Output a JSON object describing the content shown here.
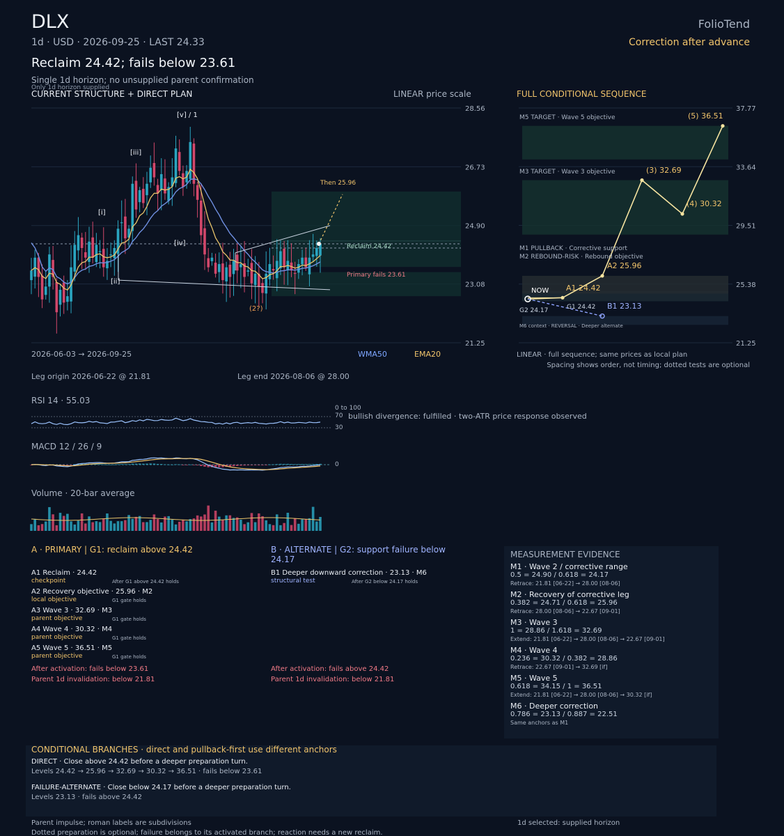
{
  "header": {
    "ticker": "DLX",
    "meta": "1d · USD · 2026-09-25 · LAST 24.33",
    "headline": "Reclaim 24.42; fails below 23.61",
    "subtitle": "Single 1d horizon; no unsupplied parent confirmation",
    "subnote": "Only 1d horizon supplied",
    "brand": "FolioTend",
    "state": "Correction after advance"
  },
  "main_chart": {
    "title": "CURRENT STRUCTURE + DIRECT PLAN",
    "scale_label": "LINEAR price scale",
    "date_range": "2026-06-03 → 2026-09-25",
    "legend_wma": "WMA50",
    "legend_ema": "EMA20",
    "leg_origin": "Leg origin 2026-06-22 @ 21.81",
    "leg_end": "Leg end 2026-08-06 @ 28.00",
    "label_then": "Then 25.96",
    "label_reclaim": "Reclaim 24.42",
    "label_fails": "Primary fails 23.61",
    "wave_labels": [
      "[i]",
      "[ii]",
      "[iii]",
      "[iv]",
      "[v] / 1",
      "(2?)"
    ]
  },
  "seq_chart": {
    "title": "FULL CONDITIONAL SEQUENCE",
    "footer1": "LINEAR · full sequence; same prices as local plan",
    "footer2": "Spacing shows order, not timing; dotted tests are optional",
    "zone_m5": "M5 TARGET · Wave 5 objective",
    "zone_m3": "M3 TARGET · Wave 3 objective",
    "zone_m1": "M1 PULLBACK · Corrective support",
    "zone_m2": "M2 REBOUND-RISK · Rebound objective",
    "zone_m6": "M6 context · REVERSAL · Deeper alternate",
    "now_label": "NOW",
    "g2_label": "G2 24.17",
    "g1_label": "G1 24.42"
  },
  "indicators": {
    "rsi_label": "RSI 14 · 55.03",
    "rsi_range": "0 to 100",
    "rsi_70": "70",
    "rsi_30": "30",
    "rsi_note": "bullish divergence: fulfilled · two-ATR price response observed",
    "macd_label": "MACD 12 / 26 / 9",
    "macd_zero": "0",
    "volume_label": "Volume · 20-bar average"
  },
  "primary": {
    "title": "A · PRIMARY | G1: reclaim above 24.42",
    "items": [
      {
        "name": "A1 Reclaim · 24.42",
        "tag": "checkpoint",
        "note": "After G1 above 24.42 holds"
      },
      {
        "name": "A2 Recovery objective · 25.96 · M2",
        "tag": "local objective",
        "note": "G1 gate holds"
      },
      {
        "name": "A3 Wave 3 · 32.69 · M3",
        "tag": "parent objective",
        "note": "G1 gate holds"
      },
      {
        "name": "A4 Wave 4 · 30.32 · M4",
        "tag": "parent objective",
        "note": "G1 gate holds"
      },
      {
        "name": "A5 Wave 5 · 36.51 · M5",
        "tag": "parent objective",
        "note": "G1 gate holds"
      }
    ],
    "fail1": "After activation: fails below 23.61",
    "fail2": "Parent 1d invalidation: below 21.81"
  },
  "alternate": {
    "title_line1": "B · ALTERNATE | G2: support failure below",
    "title_line2": "24.17",
    "items": [
      {
        "name": "B1 Deeper downward correction · 23.13 · M6",
        "tag": "structural test",
        "note": "After G2 below 24.17 holds"
      }
    ],
    "fail1": "After activation: fails above 24.42",
    "fail2": "Parent 1d invalidation: below 21.81"
  },
  "evidence": {
    "title": "MEASUREMENT EVIDENCE",
    "items": [
      {
        "h": "M1 · Wave 2 / corrective range",
        "l": "0.5 = 24.90 / 0.618 = 24.17",
        "s": "Retrace: 21.81 [06-22] → 28.00 [08-06]"
      },
      {
        "h": "M2 · Recovery of corrective leg",
        "l": "0.382 = 24.71 / 0.618 = 25.96",
        "s": "Retrace: 28.00 [08-06] → 22.67 [09-01]"
      },
      {
        "h": "M3 · Wave 3",
        "l": "1 = 28.86 / 1.618 = 32.69",
        "s": "Extend: 21.81 [06-22] → 28.00 [08-06] → 22.67 [09-01]"
      },
      {
        "h": "M4 · Wave 4",
        "l": "0.236 = 30.32 / 0.382 = 28.86",
        "s": "Retrace: 22.67 [09-01] → 32.69 [if]"
      },
      {
        "h": "M5 · Wave 5",
        "l": "0.618 = 34.15 / 1 = 36.51",
        "s": "Extend: 21.81 [06-22] → 28.00 [08-06] → 30.32 [if]"
      },
      {
        "h": "M6 · Deeper correction",
        "l": "0.786 = 23.13 / 0.887 = 22.51",
        "s": "Same anchors as M1"
      }
    ]
  },
  "branches": {
    "title": "CONDITIONAL BRANCHES · direct and pullback-first use different anchors",
    "direct_title": "DIRECT · Close above 24.42 before a deeper preparation turn.",
    "direct_levels": "Levels 24.42 → 25.96 → 32.69 → 30.32 → 36.51 · fails below 23.61",
    "alt_title": "FAILURE-ALTERNATE · Close below 24.17 before a deeper preparation turn.",
    "alt_levels": "Levels 23.13 · fails above 24.42"
  },
  "footer": {
    "left1": "Parent impulse; roman labels are subdivisions",
    "left2": "Dotted preparation is optional; failure belongs to its activated branch; reaction needs a new reclaim.",
    "right": "1d selected: supplied horizon"
  },
  "chart_data": [
    {
      "type": "candlestick",
      "title": "CURRENT STRUCTURE + DIRECT PLAN",
      "x_range": [
        "2026-06-03",
        "2026-09-25"
      ],
      "ylim": [
        21.25,
        28.56
      ],
      "y_ticks": [
        28.56,
        26.73,
        24.9,
        23.08,
        21.25
      ],
      "anchors": [
        {
          "date": "2026-06-22",
          "price": 21.81,
          "label": "Leg origin"
        },
        {
          "date": "2026-08-06",
          "price": 28.0,
          "label": "Leg end"
        },
        {
          "date": "2026-09-01",
          "price": 22.67
        },
        {
          "date": "2026-09-25",
          "price": 24.33,
          "label": "LAST"
        }
      ],
      "levels": {
        "reclaim": 24.42,
        "primary_fails": 23.61,
        "then": 25.96
      },
      "zones": [
        {
          "from": 23.61,
          "to": 25.96
        },
        {
          "from": 22.7,
          "to": 23.45
        }
      ],
      "close_path": [
        23.5,
        23.9,
        23.3,
        22.6,
        23.0,
        24.0,
        23.3,
        22.2,
        22.9,
        22.5,
        22.7,
        23.6,
        24.3,
        24.6,
        24.2,
        23.9,
        24.4,
        23.9,
        24.3,
        24.1,
        23.6,
        23.8,
        24.0,
        24.2,
        24.8,
        25.0,
        24.5,
        24.8,
        26.2,
        25.4,
        26.0,
        25.6,
        26.2,
        26.7,
        26.4,
        25.9,
        26.5,
        25.9,
        26.1,
        26.4,
        27.3,
        26.6,
        26.1,
        26.6,
        27.5,
        26.2,
        25.7,
        24.6,
        24.0,
        23.6,
        23.9,
        23.4,
        23.7,
        23.2,
        23.6,
        23.3,
        23.8,
        23.5,
        23.7,
        23.3,
        23.5,
        23.1,
        23.4,
        23.0,
        22.8,
        23.4,
        23.7,
        23.5,
        23.8,
        24.1,
        23.6,
        23.8,
        23.5,
        23.4,
        23.7,
        23.9,
        23.6,
        23.9,
        24.0,
        24.2,
        24.33
      ],
      "wave_labels": [
        {
          "label": "[i]",
          "price": 24.95
        },
        {
          "label": "[ii]",
          "price": 22.91
        },
        {
          "label": "[iii]",
          "price": 26.9
        },
        {
          "label": "[iv]",
          "price": 24.2
        },
        {
          "label": "[v] / 1",
          "price": 28.0
        },
        {
          "label": "(2?)",
          "price": 22.67
        }
      ]
    },
    {
      "type": "line",
      "title": "FULL CONDITIONAL SEQUENCE",
      "ylim": [
        21.25,
        37.77
      ],
      "y_ticks": [
        37.77,
        33.64,
        29.51,
        25.38,
        21.25
      ],
      "series": [
        {
          "name": "primary",
          "labels": [
            "NOW",
            "A1 24.42",
            "A2 25.96",
            "(3) 32.69",
            "(4) 30.32",
            "(5) 36.51"
          ],
          "values": [
            24.33,
            24.42,
            25.96,
            32.69,
            30.32,
            36.51
          ]
        },
        {
          "name": "alternate",
          "labels": [
            "NOW",
            "B1 23.13"
          ],
          "values": [
            24.33,
            23.13
          ]
        }
      ],
      "zones": [
        {
          "label": "M5 TARGET · Wave 5 objective",
          "from": 34.15,
          "to": 36.51
        },
        {
          "label": "M3 TARGET · Wave 3 objective",
          "from": 28.86,
          "to": 32.69
        },
        {
          "label": "M1 PULLBACK · Corrective support",
          "from": 24.17,
          "to": 24.9
        },
        {
          "label": "M2 REBOUND-RISK · Rebound objective",
          "from": 24.71,
          "to": 25.96
        },
        {
          "label": "M6 context · REVERSAL · Deeper alternate",
          "from": 22.51,
          "to": 23.13
        }
      ],
      "gates": [
        {
          "label": "G1 24.42",
          "value": 24.42
        },
        {
          "label": "G2 24.17",
          "value": 24.17
        }
      ]
    }
  ]
}
